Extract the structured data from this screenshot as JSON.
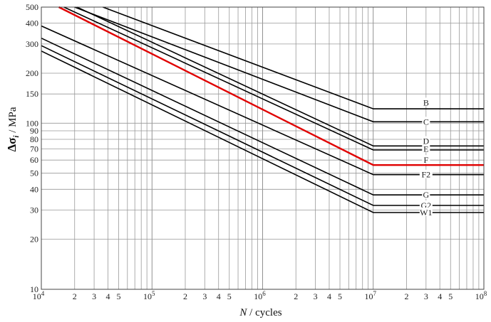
{
  "chart_data": {
    "type": "line",
    "title": "",
    "xlabel_italic": "N",
    "xlabel_rest": " / cycles",
    "ylabel_symbol": "Δσ",
    "ylabel_sub": "i",
    "ylabel_unit": " / MPa",
    "x_scale": "log",
    "y_scale": "log",
    "xlim": [
      10000,
      100000000
    ],
    "ylim": [
      10,
      500
    ],
    "grid": true,
    "x_major_ticks": [
      {
        "value": 10000,
        "base": "10",
        "exp": "4"
      },
      {
        "value": 100000,
        "base": "10",
        "exp": "5"
      },
      {
        "value": 1000000,
        "base": "10",
        "exp": "6"
      },
      {
        "value": 10000000,
        "base": "10",
        "exp": "7"
      },
      {
        "value": 100000000,
        "base": "10",
        "exp": "8"
      }
    ],
    "x_minor_labels": [
      "2",
      "3",
      "4",
      "5"
    ],
    "y_ticks": [
      {
        "value": 10,
        "label": "10"
      },
      {
        "value": 20,
        "label": "20"
      },
      {
        "value": 30,
        "label": "30"
      },
      {
        "value": 40,
        "label": "40"
      },
      {
        "value": 50,
        "label": "50"
      },
      {
        "value": 60,
        "label": "60"
      },
      {
        "value": 70,
        "label": "70"
      },
      {
        "value": 80,
        "label": "80"
      },
      {
        "value": 90,
        "label": "90"
      },
      {
        "value": 100,
        "label": "100"
      },
      {
        "value": 150,
        "label": "150"
      },
      {
        "value": 200,
        "label": "200"
      },
      {
        "value": 300,
        "label": "300"
      },
      {
        "value": 400,
        "label": "400"
      },
      {
        "value": 500,
        "label": "500"
      }
    ],
    "series": [
      {
        "name": "B",
        "color": "#000000",
        "x": [
          36000,
          10000000,
          100000000
        ],
        "y": [
          500,
          122,
          122
        ]
      },
      {
        "name": "C",
        "color": "#000000",
        "x": [
          20000,
          10000000,
          100000000
        ],
        "y": [
          500,
          102,
          102
        ]
      },
      {
        "name": "D",
        "color": "#000000",
        "x": [
          21000,
          10000000,
          100000000
        ],
        "y": [
          500,
          73,
          73
        ]
      },
      {
        "name": "E",
        "color": "#000000",
        "x": [
          16000,
          10000000,
          100000000
        ],
        "y": [
          500,
          69,
          69
        ]
      },
      {
        "name": "F",
        "color": "#e00000",
        "x": [
          14400,
          10000000,
          100000000
        ],
        "y": [
          500,
          56,
          56
        ]
      },
      {
        "name": "F2",
        "color": "#000000",
        "x": [
          10000,
          10000000,
          100000000
        ],
        "y": [
          385,
          49,
          49
        ]
      },
      {
        "name": "G",
        "color": "#000000",
        "x": [
          10000,
          10000000,
          100000000
        ],
        "y": [
          325,
          37,
          37
        ]
      },
      {
        "name": "G2",
        "color": "#000000",
        "x": [
          10000,
          10000000,
          100000000
        ],
        "y": [
          293,
          32,
          32
        ]
      },
      {
        "name": "W1",
        "color": "#000000",
        "x": [
          10000,
          10000000,
          100000000
        ],
        "y": [
          272,
          29,
          29
        ]
      }
    ],
    "label_x": 30000000,
    "label_y": [
      133,
      102,
      78,
      70,
      60,
      49,
      37,
      32,
      29
    ]
  }
}
